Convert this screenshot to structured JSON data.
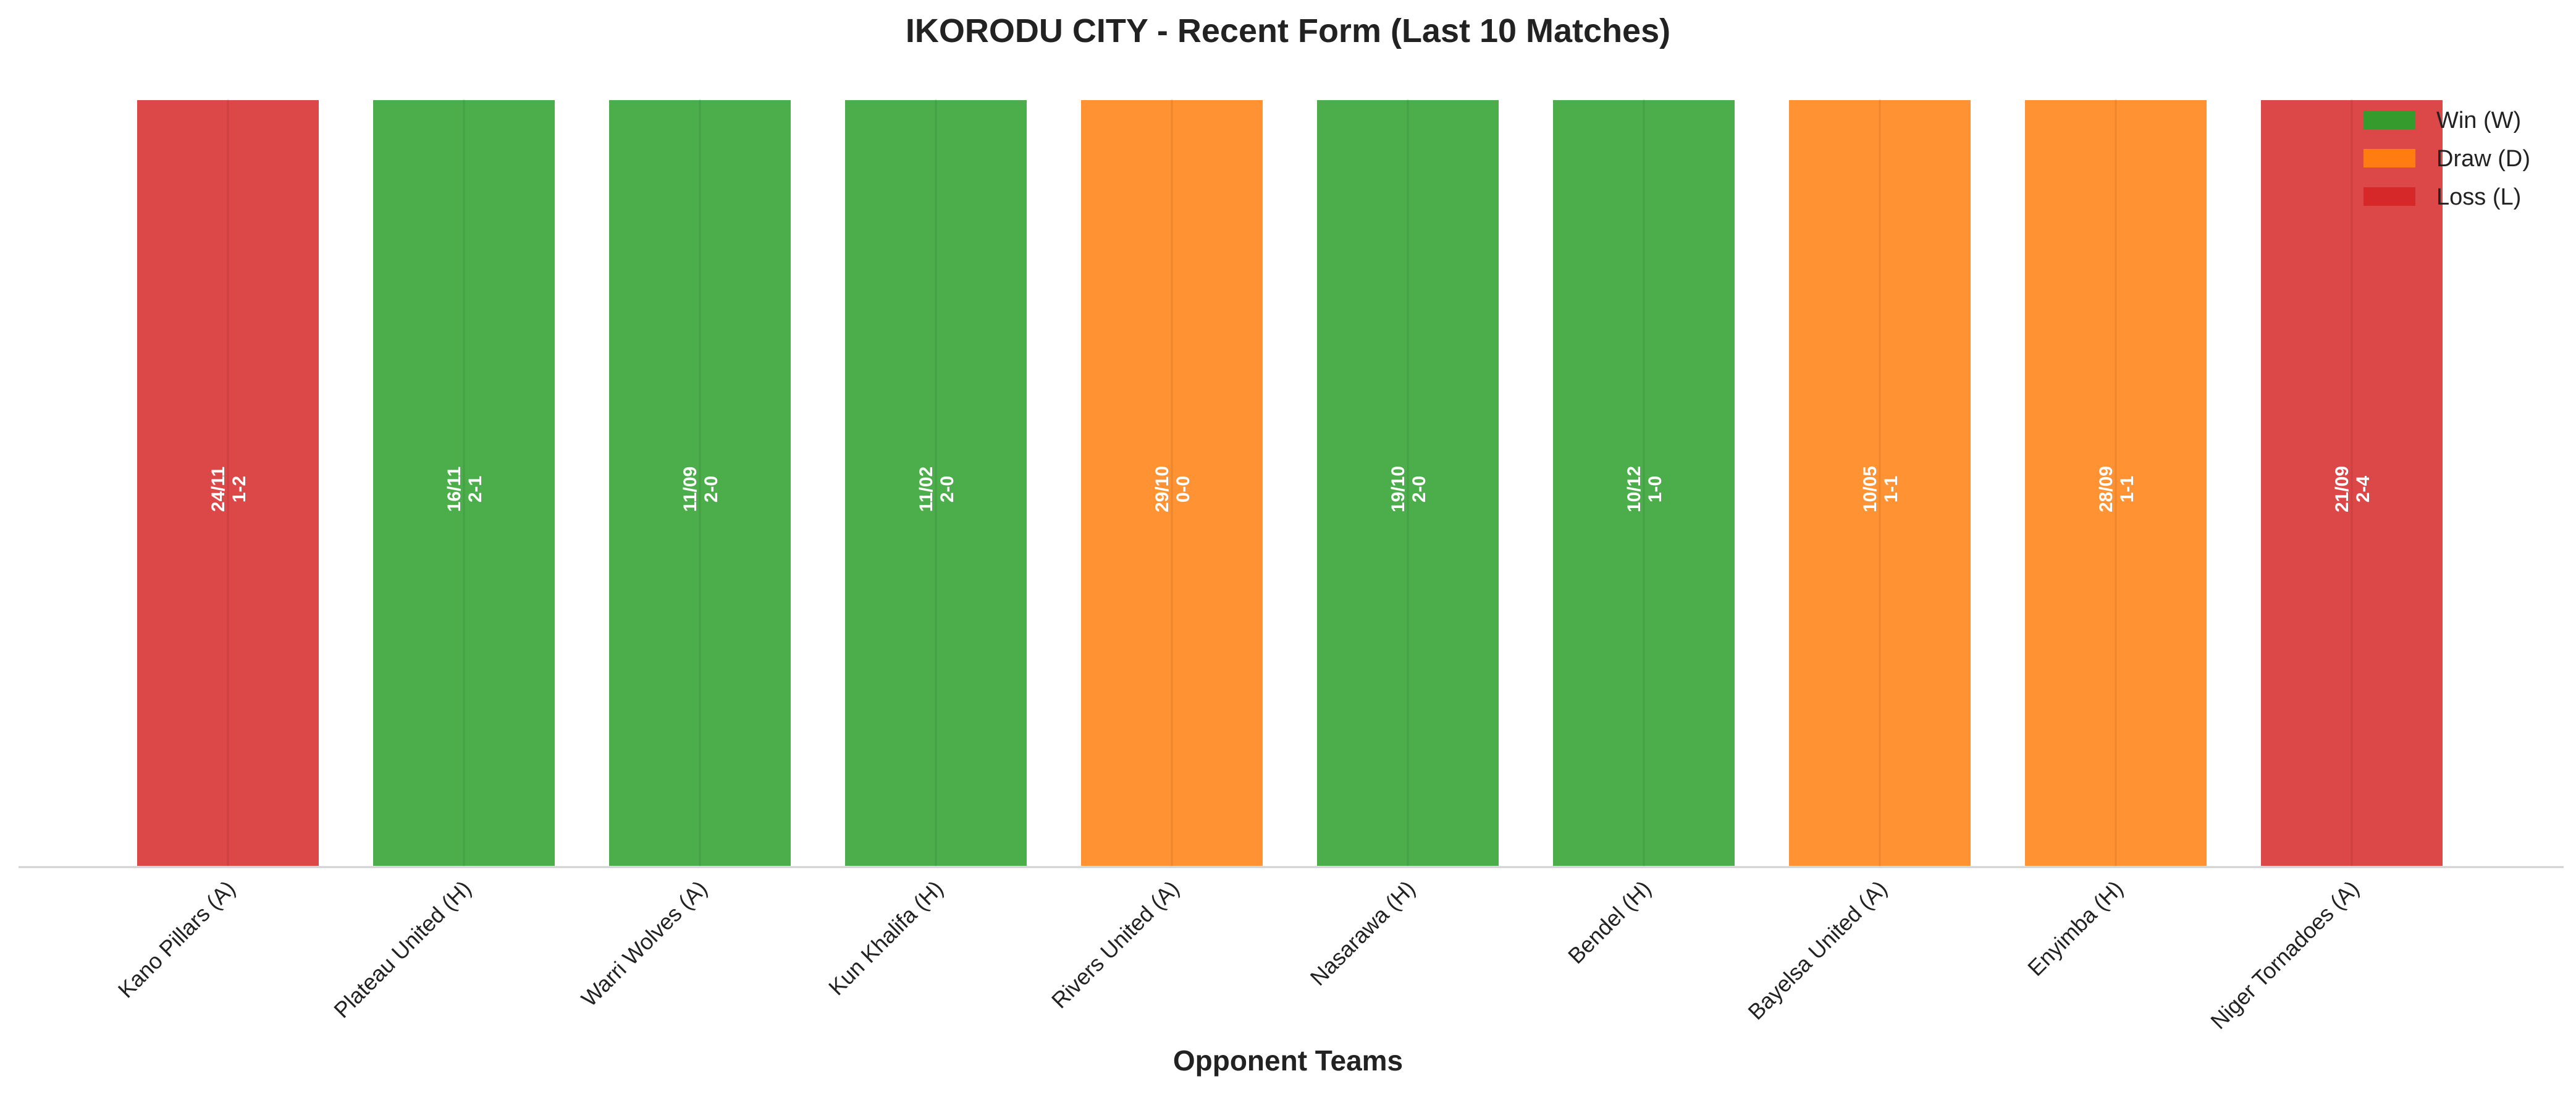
{
  "chart_data": {
    "type": "bar",
    "title": "IKORODU CITY - Recent Form (Last 10 Matches)",
    "xlabel": "Opponent Teams",
    "ylabel": "",
    "categories": [
      "Kano Pillars (A)",
      "Plateau United (H)",
      "Warri Wolves (A)",
      "Kun Khalifa (H)",
      "Rivers United (A)",
      "Nasarawa (H)",
      "Bendel (H)",
      "Bayelsa United (A)",
      "Enyimba (H)",
      "Niger Tornadoes (A)"
    ],
    "values": [
      1,
      1,
      1,
      1,
      1,
      1,
      1,
      1,
      1,
      1
    ],
    "ylim": [
      0,
      1
    ],
    "results": [
      "L",
      "W",
      "W",
      "W",
      "D",
      "W",
      "W",
      "D",
      "D",
      "L"
    ],
    "dates": [
      "24/11",
      "16/11",
      "11/09",
      "11/02",
      "29/10",
      "19/10",
      "10/12",
      "10/05",
      "28/09",
      "21/09"
    ],
    "scores": [
      "1-2",
      "2-1",
      "2-0",
      "2-0",
      "0-0",
      "2-0",
      "1-0",
      "1-1",
      "1-1",
      "2-4"
    ],
    "legend": {
      "position": "top-right",
      "entries": [
        {
          "key": "W",
          "label": "Win (W)",
          "color": "#2ca02c"
        },
        {
          "key": "D",
          "label": "Draw (D)",
          "color": "#ff7f0e"
        },
        {
          "key": "L",
          "label": "Loss (L)",
          "color": "#d62728"
        }
      ]
    },
    "grid": true
  }
}
